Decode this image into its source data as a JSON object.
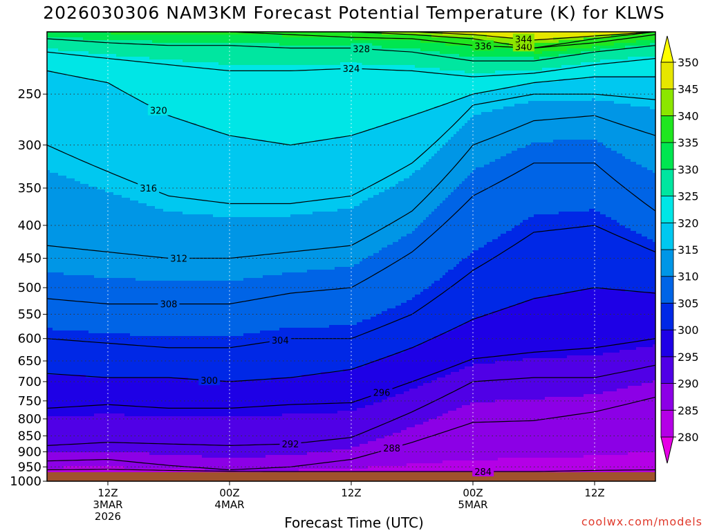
{
  "title": "2026030306 NAM3KM Forecast Potential Temperature (K) for KLWS",
  "credit": "coolwx.com/models",
  "chart_data": {
    "type": "heatmap",
    "title": "2026030306 NAM3KM Forecast Potential Temperature (K) for KLWS",
    "xlabel": "Forecast Time (UTC)",
    "ylabel": "",
    "y_scale": "log",
    "y_reversed": true,
    "y_range_hpa": [
      200,
      1000
    ],
    "y_ticks": [
      250,
      300,
      350,
      400,
      450,
      500,
      550,
      600,
      650,
      700,
      750,
      800,
      850,
      900,
      950,
      1000
    ],
    "y_tick_labels": [
      "250",
      "300",
      "350",
      "400",
      "450",
      "500",
      "550",
      "600",
      "650",
      "700",
      "750",
      "800",
      "850",
      "900",
      "950",
      "1000"
    ],
    "x_range_hours": [
      0,
      60
    ],
    "x_ticks": [
      {
        "hour": 6,
        "lines": [
          "12Z",
          "3MAR",
          "2026"
        ]
      },
      {
        "hour": 18,
        "lines": [
          "00Z",
          "4MAR"
        ]
      },
      {
        "hour": 30,
        "lines": [
          "12Z"
        ]
      },
      {
        "hour": 42,
        "lines": [
          "00Z",
          "5MAR"
        ]
      },
      {
        "hour": 54,
        "lines": [
          "12Z"
        ]
      }
    ],
    "grid": true,
    "ground_top_hpa": 968,
    "colorbar": {
      "levels": [
        280,
        285,
        290,
        295,
        300,
        305,
        310,
        315,
        320,
        325,
        330,
        335,
        340,
        345,
        350
      ],
      "labels": [
        "280",
        "285",
        "290",
        "295",
        "300",
        "305",
        "310",
        "315",
        "320",
        "325",
        "330",
        "335",
        "340",
        "345",
        "350"
      ],
      "colors": [
        "#e600e6",
        "#b400e6",
        "#8c00e6",
        "#5000e6",
        "#1e00e6",
        "#0028e6",
        "#0064e6",
        "#0096e6",
        "#00c8f0",
        "#00e6e6",
        "#00e6a0",
        "#00e650",
        "#20e620",
        "#8ce600",
        "#e6e600",
        "#ffff00"
      ]
    },
    "times_hours": [
      0,
      6,
      12,
      18,
      24,
      30,
      36,
      42,
      48,
      54,
      60
    ],
    "contours": [
      {
        "label": "284",
        "hpa": [
          960,
          958,
          962,
          965,
          966,
          966,
          966,
          966,
          966,
          962,
          960
        ]
      },
      {
        "label": "288",
        "hpa": [
          930,
          925,
          945,
          960,
          950,
          925,
          870,
          810,
          805,
          780,
          740
        ]
      },
      {
        "label": "292",
        "hpa": [
          880,
          870,
          875,
          880,
          875,
          855,
          780,
          700,
          690,
          690,
          660
        ]
      },
      {
        "label": "296",
        "hpa": [
          770,
          760,
          770,
          770,
          760,
          755,
          700,
          645,
          630,
          620,
          600
        ]
      },
      {
        "label": "300",
        "hpa": [
          680,
          690,
          690,
          700,
          690,
          670,
          620,
          560,
          520,
          500,
          510
        ]
      },
      {
        "label": "304",
        "hpa": [
          600,
          610,
          620,
          620,
          600,
          600,
          550,
          470,
          410,
          400,
          440
        ]
      },
      {
        "label": "308",
        "hpa": [
          520,
          530,
          530,
          530,
          510,
          500,
          440,
          360,
          320,
          320,
          380
        ]
      },
      {
        "label": "312",
        "hpa": [
          430,
          440,
          450,
          450,
          440,
          430,
          380,
          300,
          275,
          270,
          290
        ]
      },
      {
        "label": "316",
        "hpa": [
          300,
          330,
          360,
          370,
          370,
          360,
          320,
          260,
          250,
          250,
          255
        ]
      },
      {
        "label": "320",
        "hpa": [
          230,
          240,
          270,
          290,
          300,
          290,
          270,
          250,
          240,
          235,
          235
        ]
      },
      {
        "label": "324",
        "hpa": [
          215,
          220,
          225,
          230,
          230,
          228,
          230,
          235,
          232,
          225,
          220
        ]
      },
      {
        "label": "328",
        "hpa": [
          205,
          208,
          210,
          210,
          212,
          212,
          215,
          222,
          222,
          215,
          210
        ]
      },
      {
        "label": "336",
        "hpa": [
          200,
          200,
          200,
          200,
          202,
          204,
          205,
          210,
          212,
          205,
          200
        ]
      },
      {
        "label": "340",
        "hpa": [
          200,
          200,
          200,
          200,
          200,
          200,
          202,
          205,
          212,
          208,
          202
        ]
      },
      {
        "label": "344",
        "hpa": [
          200,
          200,
          200,
          200,
          200,
          200,
          200,
          202,
          206,
          203,
          200
        ]
      }
    ]
  }
}
